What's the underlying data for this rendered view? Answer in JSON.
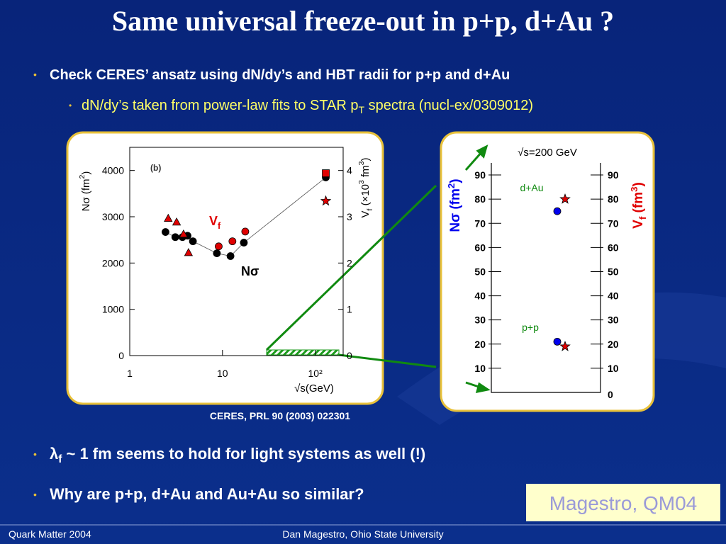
{
  "title": "Same universal freeze-out in p+p, d+Au ?",
  "bullets": [
    [
      "Check CERES’ ansatz using dN/dy’s and HBT radii for p+p and d+Au"
    ],
    [
      "dN/dy’s taken from power-law fits to STAR p",
      "T",
      " spectra (nucl-ex/0309012)"
    ],
    [
      "λ",
      "f",
      " ~ 1 fm seems to hold for light systems as well (!)"
    ],
    [
      "Why are p+p, d+Au and Au+Au so similar?"
    ]
  ],
  "citation": "CERES, PRL 90 (2003) 022301",
  "badge": "Magestro, QM04",
  "footer": {
    "left": "Quark Matter 2004",
    "center": "Dan Magestro, Ohio State University"
  },
  "chart_data": [
    {
      "type": "scatter",
      "xscale": "log",
      "xlabel": "√s(GeV)",
      "ylabel": [
        "Nσ (fm",
        "2",
        ")"
      ],
      "y2label": [
        "V",
        "f",
        " (×10",
        "3",
        " fm",
        "3",
        ")"
      ],
      "annotations": {
        "panel": "(b)",
        "vf": [
          "V",
          "f"
        ],
        "nsigma": "Nσ"
      },
      "xlim": [
        1,
        200
      ],
      "xticks": [
        1,
        10,
        {
          "value": 100,
          "label": "10²"
        }
      ],
      "ylim": [
        0,
        4500
      ],
      "yticks": [
        0,
        1000,
        2000,
        3000,
        4000
      ],
      "y2lim": [
        0,
        4.5
      ],
      "y2ticks": [
        0,
        1,
        2,
        3,
        4
      ],
      "series": [
        {
          "marker": "circle",
          "color": "#000000",
          "line": true,
          "x": [
            2.43,
            3.1,
            3.7,
            4.2,
            4.8,
            8.7,
            12.2,
            17.0,
            130
          ],
          "values": [
            2670,
            2560,
            2560,
            2590,
            2470,
            2210,
            2150,
            2440,
            3850
          ]
        },
        {
          "marker": "triangle",
          "color": "#e00000",
          "axis": "y2",
          "x": [
            2.6,
            3.2,
            3.8,
            4.3
          ],
          "values": [
            2.96,
            2.88,
            2.62,
            2.22
          ]
        },
        {
          "marker": "circle",
          "color": "#e00000",
          "axis": "y2",
          "x": [
            9.1,
            12.8,
            17.6
          ],
          "values": [
            2.36,
            2.47,
            2.68
          ]
        },
        {
          "marker": "square",
          "color": "#e00000",
          "axis": "y2",
          "x": [
            130
          ],
          "values": [
            3.94
          ]
        },
        {
          "marker": "star",
          "color": "#e00000",
          "axis": "y2",
          "x": [
            130
          ],
          "values": [
            3.34
          ]
        }
      ]
    },
    {
      "type": "scatter",
      "title": "√s=200 GeV",
      "ylabel": [
        "Nσ (fm",
        "2",
        ")"
      ],
      "y2label": [
        "V",
        "f",
        " (fm",
        "3",
        ")"
      ],
      "categories": [
        "p+p",
        "d+Au"
      ],
      "ylim": [
        0,
        95
      ],
      "yticks": [
        10,
        20,
        30,
        40,
        50,
        60,
        70,
        80,
        90
      ],
      "y2lim": [
        0,
        95
      ],
      "y2ticks": [
        0,
        10,
        20,
        30,
        40,
        50,
        60,
        70,
        80,
        90
      ],
      "series": [
        {
          "marker": "circle",
          "color": "#0000ee",
          "values": [
            21,
            75
          ]
        },
        {
          "marker": "star",
          "color": "#e00000",
          "axis": "y2",
          "values": [
            19,
            80
          ]
        }
      ]
    }
  ]
}
